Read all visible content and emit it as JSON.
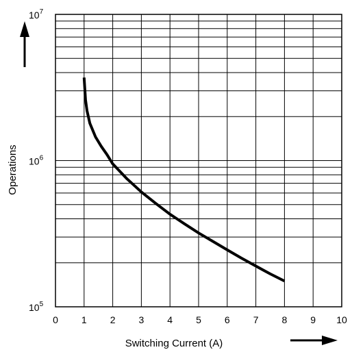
{
  "chart_data": {
    "type": "line",
    "title": "",
    "xlabel": "Switching Current (A)",
    "ylabel": "Operations",
    "xlim": [
      0,
      10
    ],
    "ylim": [
      100000,
      10000000
    ],
    "yscale": "log",
    "grid": true,
    "x_ticks": [
      "0",
      "1",
      "2",
      "3",
      "4",
      "5",
      "6",
      "7",
      "8",
      "9",
      "10"
    ],
    "y_ticks": [
      {
        "base": "10",
        "exp": "5"
      },
      {
        "base": "10",
        "exp": "6"
      },
      {
        "base": "10",
        "exp": "7"
      }
    ],
    "series": [
      {
        "x": [
          1.0,
          1.05,
          1.1,
          1.2,
          1.4,
          1.6,
          1.8,
          2.0,
          2.5,
          3.0,
          3.5,
          4.0,
          4.5,
          5.0,
          5.5,
          6.0,
          6.5,
          7.0,
          7.5,
          8.0
        ],
        "y": [
          3700000,
          2600000,
          2200000,
          1800000,
          1450000,
          1250000,
          1100000,
          950000,
          750000,
          610000,
          510000,
          430000,
          370000,
          320000,
          280000,
          245000,
          215000,
          190000,
          168000,
          150000
        ]
      }
    ]
  }
}
